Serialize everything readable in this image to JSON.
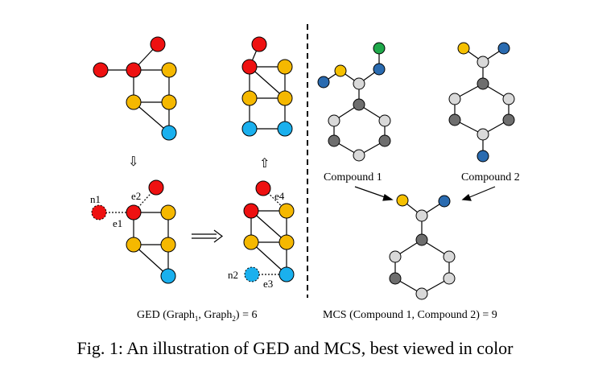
{
  "caption": "Fig. 1: An illustration of GED and MCS, best viewed in color",
  "ged_caption": {
    "prefix": "GED (Graph",
    "sub1": "1",
    "mid": ", Graph",
    "sub2": "2",
    "suffix": ") = 6"
  },
  "mcs_caption": "MCS (Compound 1, Compound 2) = 9",
  "compound_labels": [
    "Compound 1",
    "Compound 2"
  ],
  "edit_labels": {
    "n1": "n1",
    "n2": "n2",
    "e1": "e1",
    "e2": "e2",
    "e3": "e3",
    "e4": "e4"
  },
  "colors": {
    "red": "#ee1111",
    "yellow": "#f5b800",
    "blue": "#1ab0ee",
    "light_gray": "#d9d9d9",
    "dark_gray": "#6e6e6e",
    "mol_blue": "#2a6bb0",
    "mol_yellow": "#f5c000",
    "mol_green": "#1fa84a"
  }
}
